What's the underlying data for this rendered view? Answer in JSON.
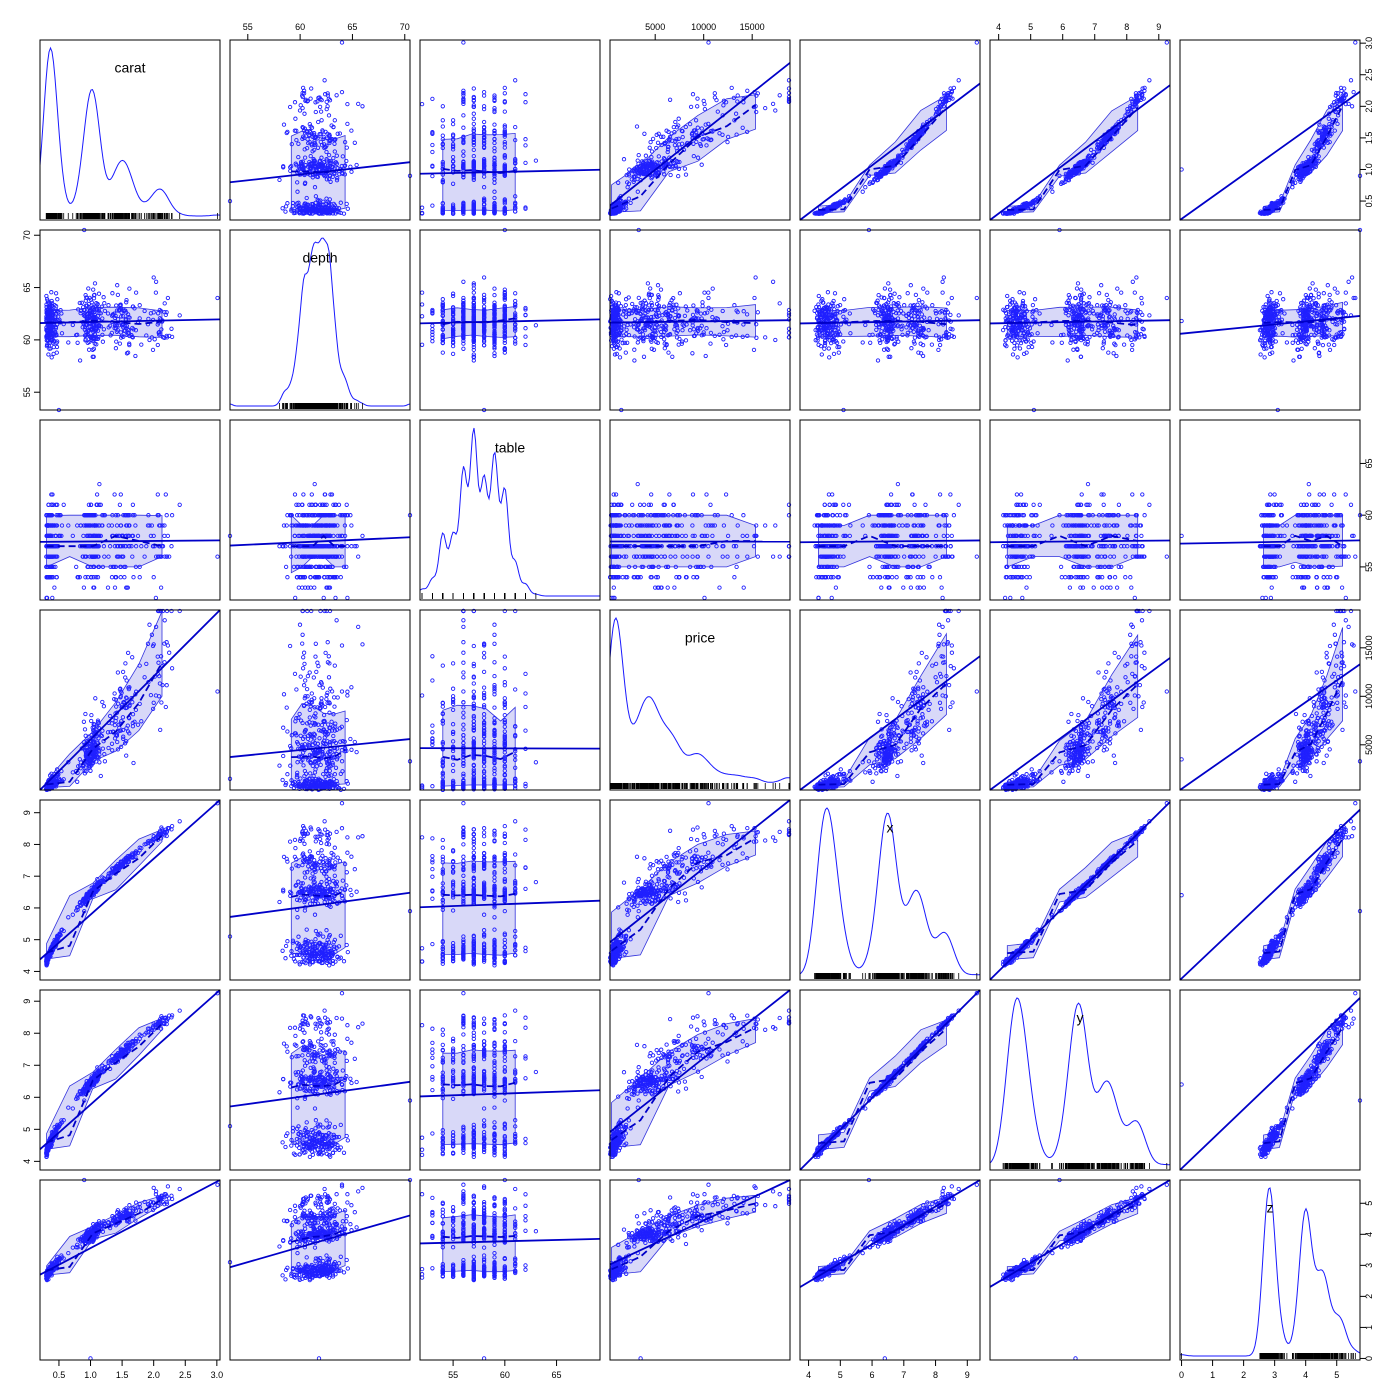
{
  "chart_data": {
    "type": "scatter-matrix",
    "title": "",
    "variables": [
      {
        "name": "carat",
        "range": [
          0.2,
          3.05
        ],
        "ticks": [
          0.5,
          1.0,
          1.5,
          2.0,
          2.5,
          3.0
        ],
        "tick_labels": [
          "0.5",
          "1.0",
          "1.5",
          "2.0",
          "2.5",
          "3.0"
        ],
        "label_pos": [
          0.5,
          0.82
        ]
      },
      {
        "name": "depth",
        "range": [
          53.3,
          70.5
        ],
        "ticks": [
          55,
          60,
          65,
          70
        ],
        "tick_labels": [
          "55",
          "60",
          "65",
          "70"
        ],
        "label_pos": [
          0.5,
          0.82
        ]
      },
      {
        "name": "table",
        "range": [
          51.8,
          69.2
        ],
        "ticks": [
          55,
          60,
          65
        ],
        "tick_labels": [
          "55",
          "60",
          "65"
        ],
        "label_pos": [
          0.5,
          0.82
        ]
      },
      {
        "name": "price",
        "range": [
          340,
          18900
        ],
        "ticks": [
          5000,
          10000,
          15000
        ],
        "tick_labels": [
          "5000",
          "10000",
          "15000"
        ],
        "label_pos": [
          0.5,
          0.82
        ]
      },
      {
        "name": "x",
        "range": [
          3.73,
          9.4
        ],
        "ticks": [
          4,
          5,
          6,
          7,
          8,
          9
        ],
        "tick_labels": [
          "4",
          "5",
          "6",
          "7",
          "8",
          "9"
        ],
        "label_pos": [
          0.5,
          0.82
        ]
      },
      {
        "name": "y",
        "range": [
          3.73,
          9.35
        ],
        "ticks": [
          4,
          5,
          6,
          7,
          8,
          9
        ],
        "tick_labels": [
          "4",
          "5",
          "6",
          "7",
          "8",
          "9"
        ],
        "label_pos": [
          0.5,
          0.82
        ]
      },
      {
        "name": "z",
        "range": [
          -0.05,
          5.75
        ],
        "ticks": [
          0,
          1,
          2,
          3,
          4,
          5
        ],
        "tick_labels": [
          "0",
          "1",
          "2",
          "3",
          "4",
          "5"
        ],
        "label_pos": [
          0.5,
          0.82
        ]
      }
    ],
    "panels": {
      "diagonal": "kernel density with rug",
      "off_diagonal": "scatter with linear fit (solid), smoother (dashed) and shaded spread band"
    },
    "axes": {
      "top_ticks_on_columns": [
        "depth",
        "price",
        "y"
      ],
      "bottom_ticks_on_columns": [
        "carat",
        "table",
        "x",
        "z"
      ],
      "left_ticks_on_rows": [
        "depth",
        "x",
        "y"
      ],
      "right_ticks_on_rows": [
        "carat",
        "table",
        "price",
        "z"
      ]
    },
    "sample_size": 500,
    "colors": {
      "points": "#2020ff",
      "line": "#0000c8",
      "band": "#b8b8f2",
      "frame": "#000000"
    },
    "grid": false,
    "legend": "none"
  }
}
